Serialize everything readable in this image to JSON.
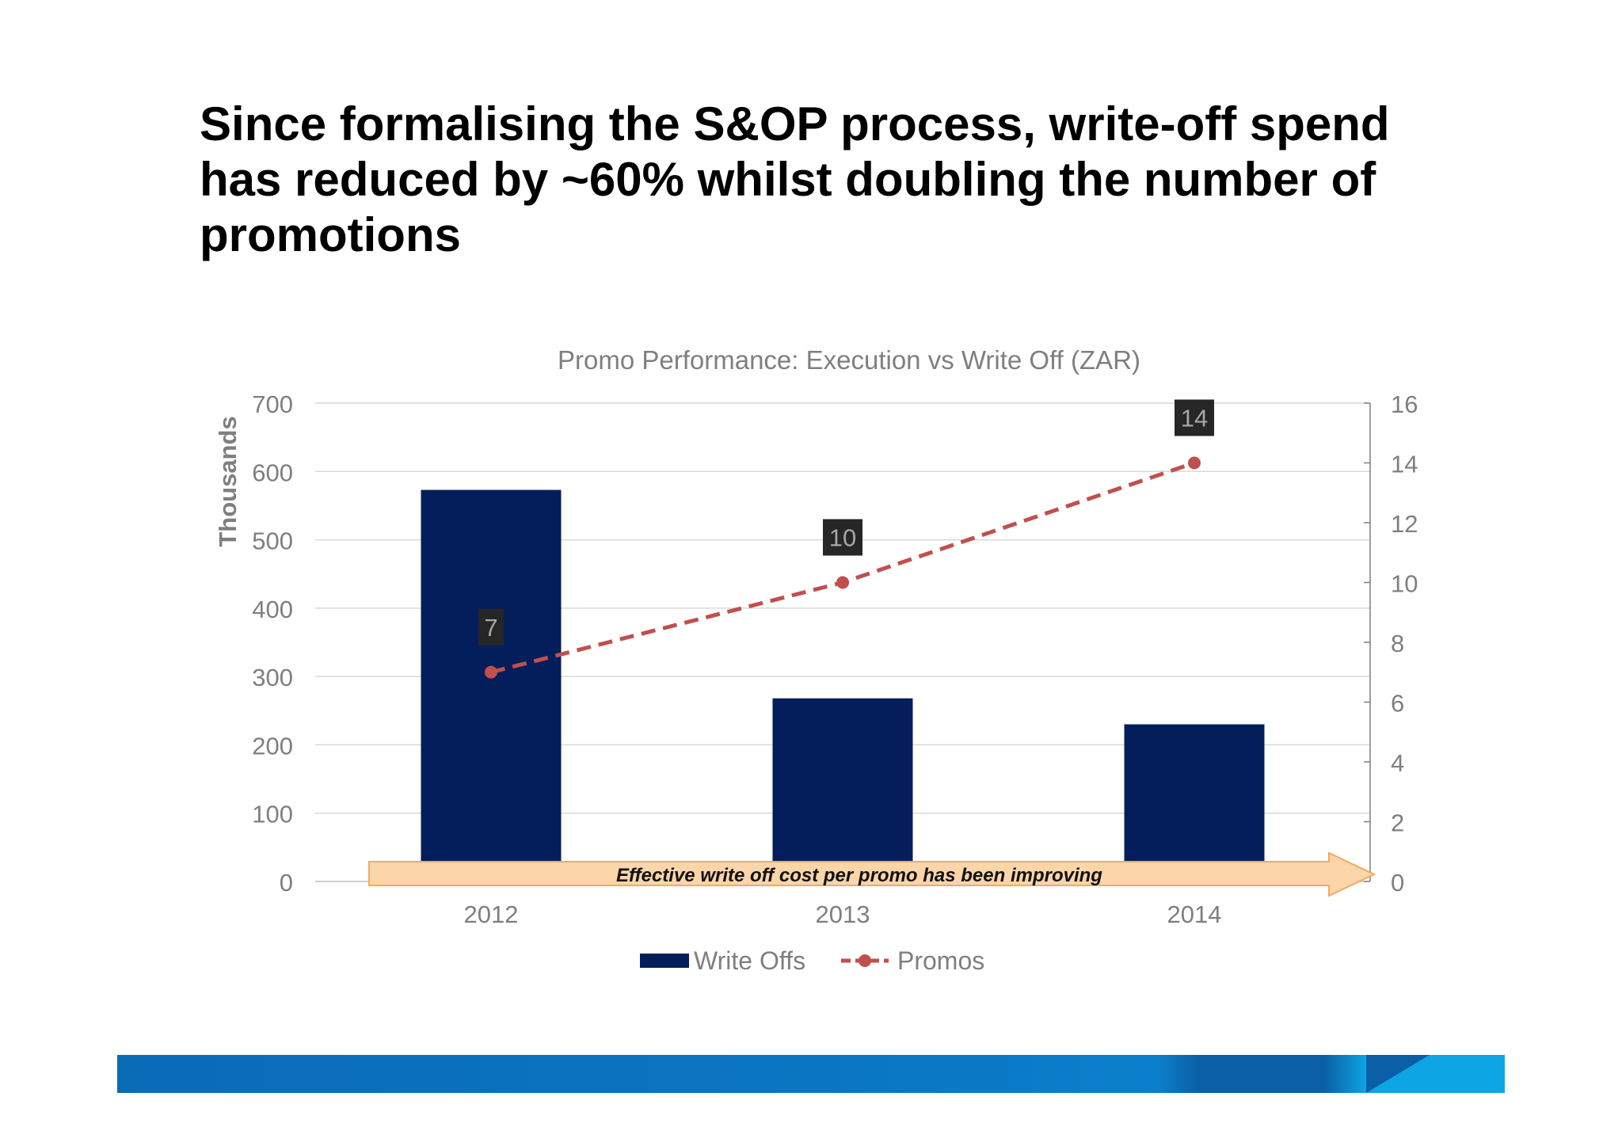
{
  "slide": {
    "title_lines": [
      "Since formalising the S&OP process, write-off spend",
      "has reduced by ~60% whilst doubling the number of",
      "promotions"
    ]
  },
  "chart_data": {
    "type": "bar",
    "title": "Promo Performance: Execution vs Write Off (ZAR)",
    "categories": [
      "2012",
      "2013",
      "2014"
    ],
    "ylabel": "Thousands",
    "ylim": [
      0,
      700
    ],
    "yticks": [
      0,
      100,
      200,
      300,
      400,
      500,
      600,
      700
    ],
    "y2lim": [
      0,
      16
    ],
    "y2ticks": [
      0,
      2,
      4,
      6,
      8,
      10,
      12,
      14,
      16
    ],
    "grid": true,
    "legend": "bottom",
    "series": [
      {
        "name": "Write Offs",
        "type": "bar",
        "axis": "left",
        "values": [
          573,
          268,
          230
        ],
        "color": "#041e5c"
      },
      {
        "name": "Promos",
        "type": "line",
        "axis": "right",
        "values": [
          7,
          10,
          14
        ],
        "color": "#c0504d",
        "style": "dashed",
        "marker": "circle",
        "data_labels": [
          "7",
          "10",
          "14"
        ]
      }
    ],
    "annotation": {
      "text": "Effective write off cost per promo has been improving",
      "shape": "right-arrow",
      "fill": "#fcd5a8"
    }
  },
  "footer": {
    "colors": [
      "#0a6bb7",
      "#0a5fa6",
      "#0ea5e4"
    ]
  }
}
